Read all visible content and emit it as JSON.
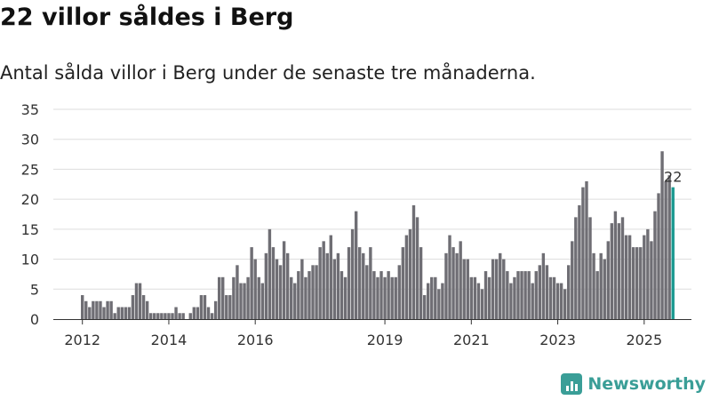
{
  "header": {
    "title": "22 villor såldes i Berg",
    "subtitle": "Antal sålda villor i Berg under de senaste tre månaderna."
  },
  "brand": {
    "name": "Newsworthy",
    "icon": "bar-chart-icon",
    "color": "#3a9e97"
  },
  "colors": {
    "bar": "#6f6e74",
    "highlight": "#1a9990",
    "grid": "#dddddd",
    "axis": "#333333",
    "text": "#333333"
  },
  "chart_data": {
    "type": "bar",
    "title": "22 villor såldes i Berg",
    "subtitle": "Antal sålda villor i Berg under de senaste tre månaderna.",
    "xlabel": "",
    "ylabel": "",
    "ylim": [
      0,
      35
    ],
    "yticks": [
      0,
      5,
      10,
      15,
      20,
      25,
      30,
      35
    ],
    "grid": true,
    "xticks": [
      {
        "label": "2012",
        "index": 0
      },
      {
        "label": "2014",
        "index": 24
      },
      {
        "label": "2016",
        "index": 48
      },
      {
        "label": "2019",
        "index": 84
      },
      {
        "label": "2021",
        "index": 108
      },
      {
        "label": "2023",
        "index": 132
      },
      {
        "label": "2025",
        "index": 156
      }
    ],
    "highlight_label": "22",
    "values": [
      4,
      3,
      2,
      3,
      3,
      3,
      2,
      3,
      3,
      1,
      2,
      2,
      2,
      2,
      4,
      6,
      6,
      4,
      3,
      1,
      1,
      1,
      1,
      1,
      1,
      1,
      2,
      1,
      1,
      0,
      1,
      2,
      2,
      4,
      4,
      2,
      1,
      3,
      7,
      7,
      4,
      4,
      7,
      9,
      6,
      6,
      7,
      12,
      10,
      7,
      6,
      11,
      15,
      12,
      10,
      9,
      13,
      11,
      7,
      6,
      8,
      10,
      7,
      8,
      9,
      9,
      12,
      13,
      11,
      14,
      10,
      11,
      8,
      7,
      12,
      15,
      18,
      12,
      11,
      9,
      12,
      8,
      7,
      8,
      7,
      8,
      7,
      7,
      9,
      12,
      14,
      15,
      19,
      17,
      12,
      4,
      6,
      7,
      7,
      5,
      6,
      11,
      14,
      12,
      11,
      13,
      10,
      10,
      7,
      7,
      6,
      5,
      8,
      7,
      10,
      10,
      11,
      10,
      8,
      6,
      7,
      8,
      8,
      8,
      8,
      6,
      8,
      9,
      11,
      9,
      7,
      7,
      6,
      6,
      5,
      9,
      13,
      17,
      19,
      22,
      23,
      17,
      11,
      8,
      11,
      10,
      13,
      16,
      18,
      16,
      17,
      14,
      14,
      12,
      12,
      12,
      14,
      15,
      13,
      18,
      21,
      28,
      23,
      24,
      22
    ]
  }
}
